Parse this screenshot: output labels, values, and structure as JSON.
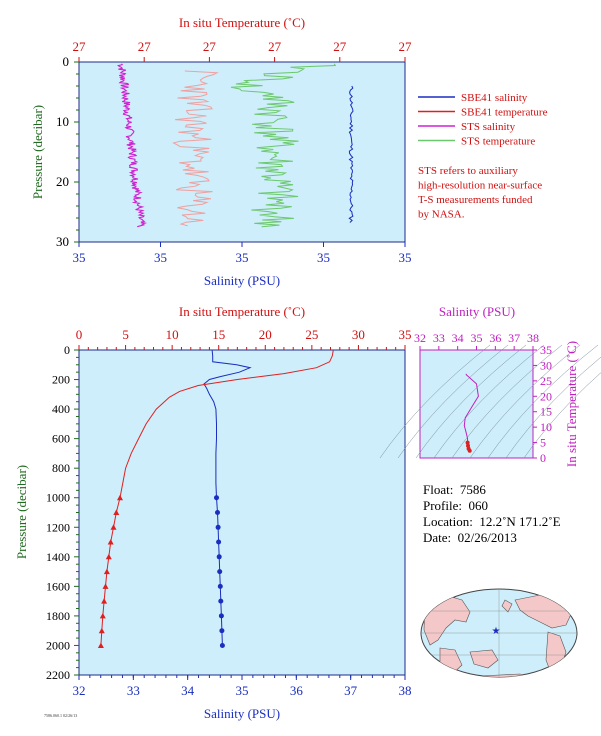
{
  "colors": {
    "background": "#cdeefa",
    "sbe_salinity": "#1a2ec0",
    "sbe_temperature": "#e02020",
    "sts_salinity": "#d020d0",
    "sts_temperature": "#6cc86c",
    "sts_temp_pink": "#f0a0a0",
    "axis_temp": "#d01010",
    "axis_sal": "#1a2ec0",
    "axis_pressure": "#1e6a1e",
    "axis_ts": "#c020c0"
  },
  "top_panel": {
    "top_axis_title": "In situ Temperature (˚C)",
    "top_ticks": [
      "27",
      "27",
      "27",
      "27",
      "27",
      "27"
    ],
    "bottom_axis_title": "Salinity (PSU)",
    "bottom_ticks": [
      "35",
      "35",
      "35",
      "35",
      "35"
    ],
    "y_axis_title": "Pressure (decibar)",
    "y_ticks": [
      "0",
      "10",
      "20",
      "30"
    ]
  },
  "legend": {
    "items": [
      {
        "label": "SBE41 salinity",
        "color": "#1a2ec0"
      },
      {
        "label": "SBE41 temperature",
        "color": "#e02020"
      },
      {
        "label": "STS salinity",
        "color": "#d020d0"
      },
      {
        "label": "STS temperature",
        "color": "#6cc86c"
      }
    ],
    "note": [
      "STS refers to auxiliary",
      "high-resolution near-surface",
      "T-S measurements funded",
      "by NASA."
    ]
  },
  "main_panel": {
    "top_axis_title": "In situ Temperature (˚C)",
    "top_ticks": [
      "0",
      "5",
      "10",
      "15",
      "20",
      "25",
      "30",
      "35"
    ],
    "bottom_axis_title": "Salinity (PSU)",
    "bottom_ticks": [
      "32",
      "33",
      "34",
      "35",
      "36",
      "37",
      "38"
    ],
    "y_axis_title": "Pressure (decibar)",
    "y_ticks": [
      "0",
      "200",
      "400",
      "600",
      "800",
      "1000",
      "1200",
      "1400",
      "1600",
      "1800",
      "2000",
      "2200"
    ]
  },
  "ts_panel": {
    "top_axis_title": "Salinity (PSU)",
    "top_ticks": [
      "32",
      "33",
      "34",
      "35",
      "36",
      "37",
      "38"
    ],
    "right_axis_title": "In situ Temperature (˚C)",
    "right_ticks": [
      "0",
      "5",
      "10",
      "15",
      "20",
      "25",
      "30",
      "35"
    ]
  },
  "info": {
    "float_label": "Float:",
    "float_value": "7586",
    "profile_label": "Profile:",
    "profile_value": "060",
    "location_label": "Location:",
    "location_value": "12.2˚N  171.2˚E",
    "date_label": "Date:",
    "date_value": "02/26/2013"
  },
  "footer_text": "7586.060.1 02/26/13",
  "chart_data": [
    {
      "type": "line",
      "title": "",
      "ylabel": "Pressure (decibar)",
      "xlabel": "Salinity (PSU)",
      "x2label": "In situ Temperature (˚C)",
      "ylim": [
        30,
        0
      ],
      "series": [
        {
          "name": "SBE41 salinity",
          "pressure": [
            4,
            8,
            12,
            16,
            20,
            24,
            27
          ],
          "salinity_offset": [
            0.82,
            0.82,
            0.83,
            0.83,
            0.82,
            0.83,
            0.83
          ]
        },
        {
          "name": "STS salinity",
          "pressure": [
            0.5,
            2,
            4,
            6,
            8,
            10,
            12,
            14,
            16,
            18,
            20,
            22,
            24,
            26,
            27.5
          ],
          "salinity_offset": [
            0.12,
            0.14,
            0.16,
            0.17,
            0.15,
            0.16,
            0.15,
            0.14,
            0.15,
            0.16,
            0.16,
            0.17,
            0.18,
            0.19,
            0.21
          ]
        },
        {
          "name": "STS temperature",
          "pressure": [
            0.5,
            1,
            2,
            3,
            4,
            5,
            6,
            7,
            8,
            9,
            10,
            12,
            14,
            16,
            18,
            20,
            22,
            24,
            26,
            27.5
          ],
          "temp_offset": [
            0.95,
            0.72,
            0.88,
            0.6,
            0.82,
            0.65,
            0.47,
            0.58,
            0.44,
            0.56,
            0.41,
            0.51,
            0.47,
            0.5,
            0.46,
            0.49,
            0.44,
            0.47,
            0.43,
            0.48
          ]
        }
      ]
    },
    {
      "type": "line",
      "title": "",
      "xlabel": "Salinity (PSU)",
      "x2label": "In situ Temperature (˚C)",
      "ylabel": "Pressure (decibar)",
      "xlim": [
        32,
        38
      ],
      "x2lim": [
        0,
        35
      ],
      "ylim": [
        2200,
        0
      ],
      "series": [
        {
          "name": "SBE41 salinity",
          "pressure": [
            0,
            40,
            80,
            100,
            120,
            150,
            180,
            200,
            230,
            260,
            300,
            350,
            400,
            500,
            600,
            700,
            800,
            900,
            1000,
            1100,
            1200,
            1300,
            1400,
            1500,
            1600,
            1700,
            1800,
            1900,
            2000
          ],
          "values": [
            34.45,
            34.46,
            34.46,
            34.9,
            35.15,
            34.95,
            34.6,
            34.4,
            34.3,
            34.35,
            34.4,
            34.48,
            34.52,
            34.53,
            34.53,
            34.52,
            34.52,
            34.52,
            34.53,
            34.55,
            34.56,
            34.57,
            34.58,
            34.59,
            34.6,
            34.61,
            34.62,
            34.63,
            34.64
          ]
        },
        {
          "name": "SBE41 temperature",
          "pressure": [
            0,
            40,
            80,
            120,
            160,
            200,
            240,
            280,
            320,
            360,
            400,
            500,
            600,
            700,
            800,
            900,
            1000,
            1100,
            1200,
            1300,
            1400,
            1500,
            1600,
            1700,
            1800,
            1900,
            2000
          ],
          "values": [
            27.3,
            27.2,
            26.9,
            25.5,
            22.0,
            17.0,
            12.8,
            10.8,
            9.7,
            9.0,
            8.3,
            7.2,
            6.4,
            5.6,
            5.0,
            4.7,
            4.4,
            4.0,
            3.7,
            3.4,
            3.2,
            3.0,
            2.85,
            2.7,
            2.55,
            2.45,
            2.35
          ]
        }
      ]
    },
    {
      "type": "scatter",
      "title": "",
      "xlabel": "Salinity (PSU)",
      "ylabel": "In situ Temperature (˚C)",
      "xlim": [
        32,
        38
      ],
      "ylim": [
        0,
        35
      ],
      "points": [
        [
          34.45,
          27.3
        ],
        [
          34.46,
          27.0
        ],
        [
          35.0,
          24.0
        ],
        [
          35.1,
          20.0
        ],
        [
          34.8,
          17.0
        ],
        [
          34.4,
          13.0
        ],
        [
          34.35,
          10.5
        ],
        [
          34.45,
          8.3
        ],
        [
          34.52,
          6.4
        ],
        [
          34.53,
          5.0
        ],
        [
          34.55,
          4.0
        ],
        [
          34.58,
          3.0
        ],
        [
          34.64,
          2.35
        ]
      ]
    }
  ]
}
